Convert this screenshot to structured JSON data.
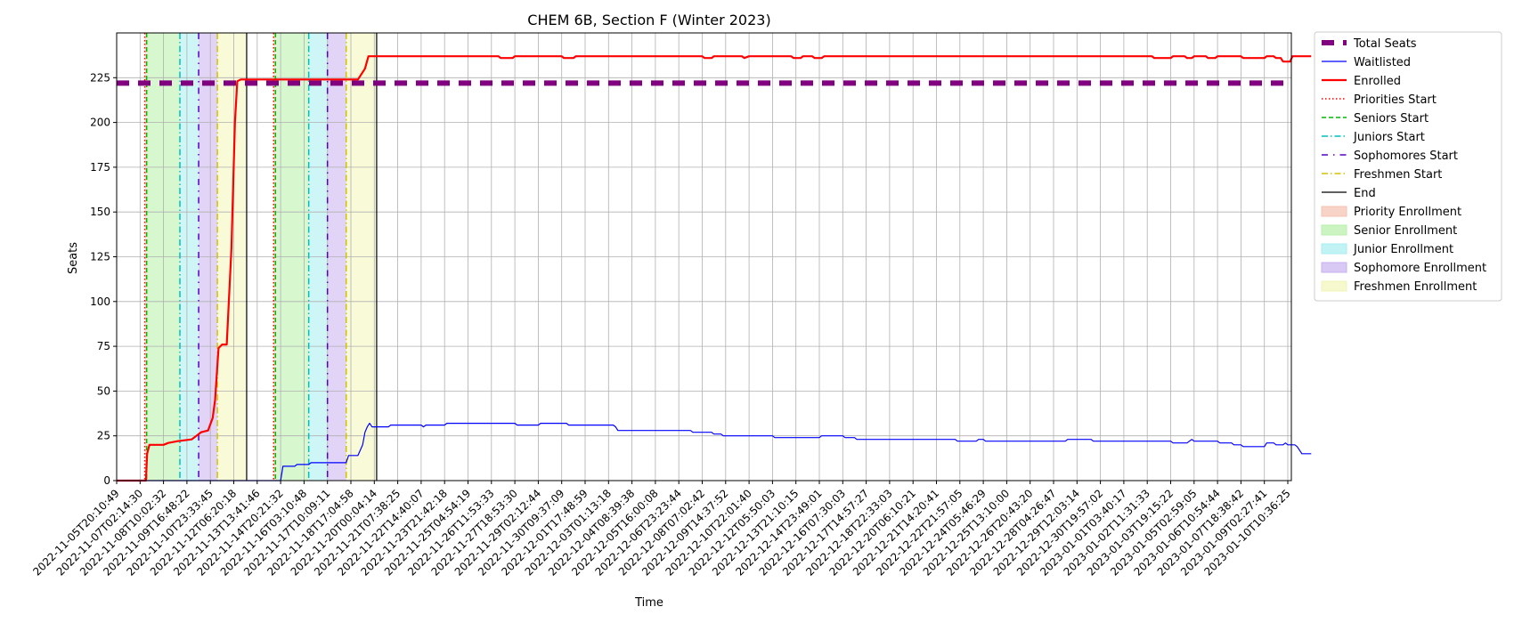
{
  "chart_data": {
    "type": "line",
    "title": "CHEM 6B, Section F (Winter 2023)",
    "xlabel": "Time",
    "ylabel": "Seats",
    "ylim": [
      0,
      250
    ],
    "yticks": [
      0,
      25,
      50,
      75,
      100,
      125,
      150,
      175,
      200,
      225
    ],
    "grid": true,
    "legend_position": "outside-right",
    "x_tick_labels": [
      "2022-11-05T20:10:49",
      "2022-11-07T02:14:30",
      "2022-11-08T10:02:32",
      "2022-11-09T16:48:22",
      "2022-11-10T23:33:45",
      "2022-11-12T06:20:18",
      "2022-11-13T13:41:46",
      "2022-11-14T20:21:32",
      "2022-11-16T03:10:48",
      "2022-11-17T10:09:11",
      "2022-11-18T17:04:58",
      "2022-11-20T00:04:14",
      "2022-11-21T07:38:25",
      "2022-11-22T14:40:07",
      "2022-11-23T21:42:18",
      "2022-11-25T04:54:19",
      "2022-11-26T11:53:33",
      "2022-11-27T18:53:30",
      "2022-11-29T02:12:44",
      "2022-11-30T09:37:09",
      "2022-12-01T17:48:59",
      "2022-12-03T01:13:18",
      "2022-12-04T08:39:38",
      "2022-12-05T16:00:08",
      "2022-12-06T23:23:44",
      "2022-12-08T07:02:42",
      "2022-12-09T14:37:52",
      "2022-12-10T22:01:40",
      "2022-12-12T05:50:03",
      "2022-12-13T21:10:15",
      "2022-12-14T23:49:01",
      "2022-12-16T07:30:03",
      "2022-12-17T14:57:27",
      "2022-12-18T22:33:03",
      "2022-12-20T06:10:21",
      "2022-12-21T14:20:41",
      "2022-12-22T21:57:05",
      "2022-12-24T05:46:29",
      "2022-12-25T13:10:00",
      "2022-12-26T20:43:20",
      "2022-12-28T04:26:47",
      "2022-12-29T12:03:14",
      "2022-12-30T19:57:02",
      "2023-01-01T03:40:17",
      "2023-01-02T11:31:33",
      "2023-01-03T19:15:22",
      "2023-01-05T02:59:05",
      "2023-01-06T10:54:44",
      "2023-01-07T18:38:42",
      "2023-01-09T02:27:41",
      "2023-01-10T10:36:25"
    ],
    "total_seats": 222,
    "series": [
      {
        "name": "Enrolled",
        "color": "#ff0000",
        "points": [
          [
            0,
            0
          ],
          [
            1.25,
            0
          ],
          [
            1.3,
            15
          ],
          [
            1.4,
            20
          ],
          [
            2,
            20
          ],
          [
            2.2,
            21
          ],
          [
            2.6,
            22
          ],
          [
            3.2,
            23
          ],
          [
            3.6,
            27
          ],
          [
            3.9,
            28
          ],
          [
            4.1,
            35
          ],
          [
            4.2,
            45
          ],
          [
            4.35,
            74
          ],
          [
            4.5,
            76
          ],
          [
            4.7,
            76
          ],
          [
            4.9,
            130
          ],
          [
            5.05,
            200
          ],
          [
            5.15,
            223
          ],
          [
            5.3,
            224
          ],
          [
            10.0,
            224
          ],
          [
            10.3,
            224
          ],
          [
            10.6,
            230
          ],
          [
            10.75,
            237
          ],
          [
            16.3,
            237
          ],
          [
            16.4,
            236
          ],
          [
            16.9,
            236
          ],
          [
            17.0,
            237
          ],
          [
            19.0,
            237
          ],
          [
            19.1,
            236
          ],
          [
            19.5,
            236
          ],
          [
            19.6,
            237
          ],
          [
            25.0,
            237
          ],
          [
            25.1,
            236
          ],
          [
            25.4,
            236
          ],
          [
            25.5,
            237
          ],
          [
            26.7,
            237
          ],
          [
            26.8,
            236
          ],
          [
            27.0,
            237
          ],
          [
            28.8,
            237
          ],
          [
            28.9,
            236
          ],
          [
            29.2,
            236
          ],
          [
            29.3,
            237
          ],
          [
            29.7,
            237
          ],
          [
            29.8,
            236
          ],
          [
            30.1,
            236
          ],
          [
            30.2,
            237
          ],
          [
            44.2,
            237
          ],
          [
            44.3,
            236
          ],
          [
            45.0,
            236
          ],
          [
            45.1,
            237
          ],
          [
            45.6,
            237
          ],
          [
            45.7,
            236
          ],
          [
            45.9,
            236
          ],
          [
            46.0,
            237
          ],
          [
            46.5,
            237
          ],
          [
            46.6,
            236
          ],
          [
            46.9,
            236
          ],
          [
            47.0,
            237
          ],
          [
            48.0,
            237
          ],
          [
            48.1,
            236
          ],
          [
            49.0,
            236
          ],
          [
            49.1,
            237
          ],
          [
            49.4,
            237
          ],
          [
            49.5,
            236
          ],
          [
            49.7,
            236
          ],
          [
            49.8,
            234
          ],
          [
            50.1,
            234
          ],
          [
            50.2,
            237
          ],
          [
            51.0,
            237
          ]
        ]
      },
      {
        "name": "Waitlisted",
        "color": "#0000ff",
        "points": [
          [
            0,
            0
          ],
          [
            7.0,
            0
          ],
          [
            7.1,
            8
          ],
          [
            7.6,
            8
          ],
          [
            7.7,
            9
          ],
          [
            8.2,
            9
          ],
          [
            8.3,
            10
          ],
          [
            9.8,
            10
          ],
          [
            9.9,
            14
          ],
          [
            10.3,
            14
          ],
          [
            10.5,
            20
          ],
          [
            10.6,
            27
          ],
          [
            10.7,
            30
          ],
          [
            10.8,
            32
          ],
          [
            10.9,
            30
          ],
          [
            11.6,
            30
          ],
          [
            11.7,
            31
          ],
          [
            13.0,
            31
          ],
          [
            13.1,
            30
          ],
          [
            13.2,
            31
          ],
          [
            14.0,
            31
          ],
          [
            14.1,
            32
          ],
          [
            17.0,
            32
          ],
          [
            17.1,
            31
          ],
          [
            18.0,
            31
          ],
          [
            18.1,
            32
          ],
          [
            19.2,
            32
          ],
          [
            19.3,
            31
          ],
          [
            21.2,
            31
          ],
          [
            21.3,
            30
          ],
          [
            21.4,
            28
          ],
          [
            24.5,
            28
          ],
          [
            24.6,
            27
          ],
          [
            25.4,
            27
          ],
          [
            25.5,
            26
          ],
          [
            25.8,
            26
          ],
          [
            25.9,
            25
          ],
          [
            28.0,
            25
          ],
          [
            28.1,
            24
          ],
          [
            30.0,
            24
          ],
          [
            30.1,
            25
          ],
          [
            31.0,
            25
          ],
          [
            31.1,
            24
          ],
          [
            31.5,
            24
          ],
          [
            31.6,
            23
          ],
          [
            35.8,
            23
          ],
          [
            35.9,
            22
          ],
          [
            36.7,
            22
          ],
          [
            36.8,
            23
          ],
          [
            37.0,
            23
          ],
          [
            37.1,
            22
          ],
          [
            40.5,
            22
          ],
          [
            40.6,
            23
          ],
          [
            41.6,
            23
          ],
          [
            41.7,
            22
          ],
          [
            45.0,
            22
          ],
          [
            45.1,
            21
          ],
          [
            45.7,
            21
          ],
          [
            45.8,
            22
          ],
          [
            45.9,
            23
          ],
          [
            46.0,
            22
          ],
          [
            47.0,
            22
          ],
          [
            47.1,
            21
          ],
          [
            47.6,
            21
          ],
          [
            47.7,
            20
          ],
          [
            48.0,
            20
          ],
          [
            48.1,
            19
          ],
          [
            49.0,
            19
          ],
          [
            49.1,
            21
          ],
          [
            49.4,
            21
          ],
          [
            49.5,
            20
          ],
          [
            49.8,
            20
          ],
          [
            49.9,
            21
          ],
          [
            50.0,
            20
          ],
          [
            50.3,
            20
          ],
          [
            50.4,
            19
          ],
          [
            50.5,
            17
          ],
          [
            50.6,
            15
          ],
          [
            51.0,
            15
          ]
        ]
      }
    ],
    "periods": [
      {
        "name": "Priority Enrollment",
        "start": 1.2,
        "end": 1.28
      },
      {
        "name": "Senior Enrollment",
        "start": 1.28,
        "end": 2.7
      },
      {
        "name": "Junior Enrollment",
        "start": 2.7,
        "end": 3.5
      },
      {
        "name": "Sophomore Enrollment",
        "start": 3.5,
        "end": 4.3
      },
      {
        "name": "Freshmen Enrollment",
        "start": 4.3,
        "end": 5.55
      },
      {
        "name": "Priority Enrollment",
        "start": 6.7,
        "end": 6.78
      },
      {
        "name": "Senior Enrollment",
        "start": 6.78,
        "end": 8.2
      },
      {
        "name": "Junior Enrollment",
        "start": 8.2,
        "end": 9.0
      },
      {
        "name": "Sophomore Enrollment",
        "start": 9.0,
        "end": 9.8
      },
      {
        "name": "Freshmen Enrollment",
        "start": 9.8,
        "end": 11.1
      }
    ],
    "markers": [
      {
        "type": "Priorities Start",
        "x": 1.2
      },
      {
        "type": "Seniors Start",
        "x": 1.28
      },
      {
        "type": "Juniors Start",
        "x": 2.7
      },
      {
        "type": "Sophomores Start",
        "x": 3.5
      },
      {
        "type": "Freshmen Start",
        "x": 4.3
      },
      {
        "type": "End",
        "x": 5.55
      },
      {
        "type": "Priorities Start",
        "x": 6.7
      },
      {
        "type": "Seniors Start",
        "x": 6.78
      },
      {
        "type": "Juniors Start",
        "x": 8.2
      },
      {
        "type": "Sophomores Start",
        "x": 9.0
      },
      {
        "type": "Freshmen Start",
        "x": 9.8
      },
      {
        "type": "End",
        "x": 11.1
      }
    ],
    "legend": [
      {
        "label": "Total Seats",
        "kind": "line",
        "color": "#800080",
        "style": "thick-dash"
      },
      {
        "label": "Waitlisted",
        "kind": "line",
        "color": "#0000ff",
        "style": "solid"
      },
      {
        "label": "Enrolled",
        "kind": "line",
        "color": "#ff0000",
        "style": "solid-thick"
      },
      {
        "label": "Priorities Start",
        "kind": "line",
        "color": "#ff0000",
        "style": "dotted"
      },
      {
        "label": "Seniors Start",
        "kind": "line",
        "color": "#00bb00",
        "style": "dashed"
      },
      {
        "label": "Juniors Start",
        "kind": "line",
        "color": "#00bfbf",
        "style": "dashdot"
      },
      {
        "label": "Sophomores Start",
        "kind": "line",
        "color": "#5500cc",
        "style": "loose-dashdot"
      },
      {
        "label": "Freshmen Start",
        "kind": "line",
        "color": "#d4c000",
        "style": "dashdot"
      },
      {
        "label": "End",
        "kind": "line",
        "color": "#000000",
        "style": "solid"
      },
      {
        "label": "Priority Enrollment",
        "kind": "patch",
        "color": "#f5c2b0"
      },
      {
        "label": "Senior Enrollment",
        "kind": "patch",
        "color": "#b7f0a8"
      },
      {
        "label": "Junior Enrollment",
        "kind": "patch",
        "color": "#a8eef0"
      },
      {
        "label": "Sophomore Enrollment",
        "kind": "patch",
        "color": "#c8b0f0"
      },
      {
        "label": "Freshmen Enrollment",
        "kind": "patch",
        "color": "#f2f5b8"
      }
    ]
  }
}
